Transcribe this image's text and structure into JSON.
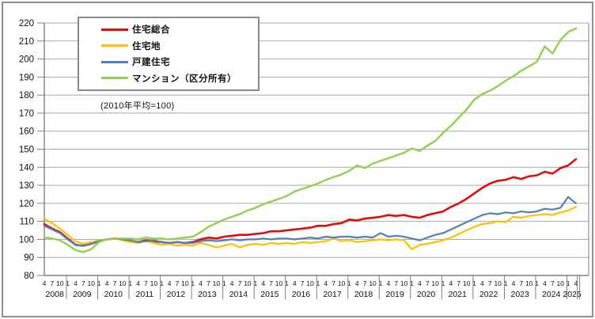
{
  "chart_data": {
    "type": "line",
    "note": "(2010年平均=100)",
    "y_axis": {
      "min": 80,
      "max": 220,
      "step": 10
    },
    "x_axis": {
      "years": [
        "2008",
        "2009",
        "2010",
        "2011",
        "2012",
        "2013",
        "2014",
        "2015",
        "2016",
        "2017",
        "2018",
        "2019",
        "2020",
        "2021",
        "2022",
        "2023",
        "2024",
        "2025"
      ],
      "quarters_per_year": [
        3,
        4,
        4,
        4,
        4,
        4,
        4,
        4,
        4,
        4,
        4,
        4,
        4,
        4,
        4,
        4,
        4,
        2
      ],
      "quarter_labels": [
        "4",
        "7",
        "10",
        "1",
        "4",
        "7",
        "10",
        "1",
        "4",
        "7",
        "10",
        "1",
        "4",
        "7",
        "10",
        "1",
        "4",
        "7",
        "10",
        "1",
        "4",
        "7",
        "10",
        "1",
        "4",
        "7",
        "10",
        "1",
        "4",
        "7",
        "10",
        "1",
        "4",
        "7",
        "10",
        "1",
        "4",
        "7",
        "10",
        "1",
        "4",
        "7",
        "10",
        "1",
        "4",
        "7",
        "10",
        "1",
        "4",
        "7",
        "10",
        "1",
        "4",
        "7",
        "10",
        "1",
        "4",
        "7",
        "10",
        "1",
        "4",
        "7",
        "10",
        "1",
        "4",
        "7",
        "10",
        "1",
        "4"
      ]
    },
    "grid": true,
    "legend_position": "top-left",
    "colors": {
      "grid": "#a8a8a8",
      "axis": "#7f7f7f",
      "border": "#8a8a8a"
    },
    "series": [
      {
        "name": "住宅総合",
        "color": "#e00d0d",
        "width": 2.6,
        "values": [
          108.5,
          106.0,
          104.0,
          100.5,
          97.0,
          96.5,
          97.5,
          99.0,
          100.0,
          100.5,
          100.0,
          99.0,
          98.5,
          99.5,
          99.0,
          98.5,
          98.0,
          98.5,
          98.0,
          98.5,
          100.0,
          101.0,
          100.5,
          101.5,
          102.0,
          102.5,
          102.5,
          103.0,
          103.5,
          104.5,
          104.5,
          105.0,
          105.5,
          106.0,
          106.5,
          107.5,
          107.5,
          108.5,
          109.0,
          111.0,
          110.5,
          111.5,
          112.0,
          112.5,
          113.5,
          113.0,
          113.5,
          112.5,
          112.0,
          113.5,
          114.5,
          115.5,
          118.0,
          120.0,
          122.5,
          125.5,
          128.5,
          131.0,
          132.5,
          133.0,
          134.5,
          133.5,
          135.0,
          135.5,
          137.5,
          136.5,
          139.5,
          141.0,
          144.5
        ]
      },
      {
        "name": "住宅地",
        "color": "#ffc000",
        "width": 2.2,
        "values": [
          111.5,
          109.0,
          106.0,
          102.5,
          99.0,
          97.5,
          98.5,
          99.5,
          100.0,
          100.5,
          99.5,
          98.5,
          98.0,
          99.0,
          98.0,
          97.0,
          97.5,
          96.5,
          97.0,
          96.5,
          98.0,
          97.0,
          95.5,
          96.5,
          97.5,
          95.5,
          97.0,
          97.5,
          97.0,
          98.0,
          97.5,
          98.0,
          97.5,
          98.5,
          98.0,
          98.5,
          99.0,
          100.5,
          99.0,
          99.5,
          98.5,
          99.0,
          99.5,
          100.0,
          99.5,
          100.0,
          99.5,
          94.5,
          97.0,
          97.5,
          98.5,
          99.5,
          101.0,
          103.0,
          105.0,
          107.0,
          108.5,
          109.0,
          110.0,
          109.5,
          112.5,
          112.0,
          113.0,
          113.5,
          114.0,
          113.5,
          115.0,
          116.0,
          118.0
        ]
      },
      {
        "name": "戸建住宅",
        "color": "#4f81bd",
        "width": 2.2,
        "values": [
          107.5,
          105.5,
          103.5,
          100.0,
          97.0,
          96.5,
          97.5,
          99.0,
          100.0,
          100.5,
          100.0,
          99.5,
          98.5,
          99.0,
          99.5,
          98.5,
          98.0,
          98.5,
          98.0,
          98.0,
          99.0,
          99.5,
          99.0,
          99.5,
          100.0,
          99.5,
          100.0,
          100.0,
          100.5,
          100.0,
          100.5,
          100.5,
          100.0,
          100.5,
          101.0,
          100.5,
          101.5,
          101.0,
          101.5,
          101.5,
          101.0,
          101.5,
          101.0,
          103.5,
          101.5,
          102.0,
          101.5,
          100.5,
          99.5,
          101.0,
          102.5,
          103.5,
          105.5,
          107.5,
          109.5,
          111.5,
          113.5,
          114.5,
          114.0,
          115.0,
          114.5,
          115.5,
          115.0,
          115.5,
          117.0,
          116.5,
          117.5,
          123.5,
          120.0
        ]
      },
      {
        "name": "マンション（区分所有）",
        "color": "#92d050",
        "width": 2.4,
        "values": [
          101.0,
          100.5,
          99.5,
          97.0,
          94.0,
          93.0,
          94.5,
          98.5,
          100.0,
          100.5,
          100.5,
          100.5,
          100.0,
          101.0,
          100.5,
          100.5,
          100.0,
          100.5,
          101.0,
          101.5,
          104.0,
          107.0,
          109.0,
          111.0,
          112.5,
          114.0,
          116.0,
          117.5,
          119.5,
          121.0,
          122.5,
          124.0,
          126.5,
          128.0,
          129.5,
          131.0,
          133.0,
          134.5,
          136.0,
          138.0,
          141.0,
          139.5,
          142.0,
          143.5,
          145.0,
          146.5,
          148.0,
          150.5,
          149.0,
          152.0,
          154.5,
          159.0,
          163.0,
          167.5,
          172.0,
          177.5,
          180.5,
          182.5,
          185.0,
          188.0,
          190.5,
          193.5,
          196.0,
          198.5,
          207.0,
          203.0,
          210.5,
          215.0,
          217.0
        ]
      }
    ]
  }
}
